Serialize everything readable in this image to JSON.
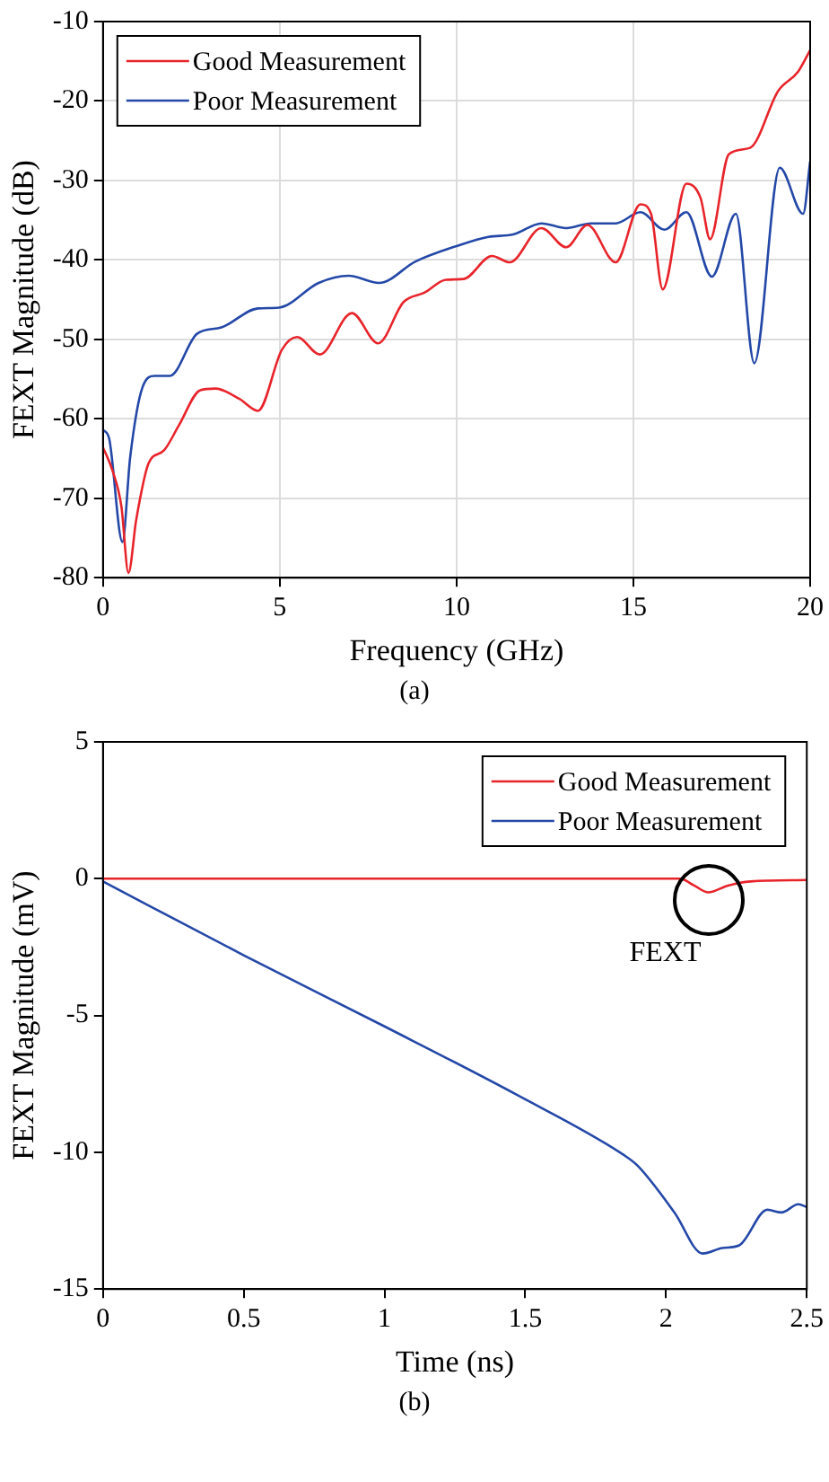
{
  "chart_data": [
    {
      "type": "line",
      "xlabel": "Frequency (GHz)",
      "ylabel": "FEXT Magnitude (dB)",
      "xlim": [
        0,
        20
      ],
      "xticks": [
        0,
        5,
        10,
        15,
        20
      ],
      "ylim": [
        -80,
        -10
      ],
      "yticks": [
        -80,
        -70,
        -60,
        -50,
        -40,
        -30,
        -20,
        -10
      ],
      "grid": true,
      "legend": "top left",
      "annotations": [
        "(a)"
      ],
      "series": [
        {
          "name": "Good Measurement",
          "color": "#e8242b",
          "x": [
            0,
            0.26,
            0.52,
            0.72,
            0.94,
            1.29,
            1.72,
            2.15,
            2.75,
            3.18,
            3.86,
            4.38,
            5.06,
            5.49,
            6.13,
            7.04,
            7.78,
            8.5,
            9.1,
            9.7,
            10.2,
            11.0,
            11.5,
            12.4,
            13.1,
            13.7,
            14.5,
            15.2,
            15.5,
            15.83,
            16.5,
            16.9,
            17.17,
            17.7,
            18.3,
            19.1,
            19.66,
            20
          ],
          "values": [
            -63.6,
            -66.4,
            -71,
            -79.4,
            -72.7,
            -65.6,
            -64,
            -60.8,
            -56.4,
            -56.2,
            -57.5,
            -59,
            -51.3,
            -49.7,
            -51.9,
            -46.7,
            -50.5,
            -45.3,
            -44.1,
            -42.5,
            -42.4,
            -39.5,
            -40.3,
            -36,
            -38.4,
            -35.6,
            -40.3,
            -33,
            -34.2,
            -43.7,
            -30.4,
            -32.2,
            -37.4,
            -26.7,
            -25.9,
            -18.7,
            -16.3,
            -13.6
          ]
        },
        {
          "name": "Poor Measurement",
          "color": "#2448a8",
          "x": [
            0,
            0.17,
            0.55,
            0.77,
            1.12,
            1.46,
            1.89,
            2.66,
            3.35,
            4.38,
            4.98,
            6.1,
            6.95,
            7.81,
            8.84,
            10.04,
            10.9,
            11.6,
            12.4,
            13.1,
            13.8,
            14.5,
            15.2,
            15.88,
            16.5,
            17.22,
            17.9,
            18.42,
            19.14,
            19.8,
            20
          ],
          "values": [
            -61.4,
            -62.4,
            -75.5,
            -64.8,
            -56,
            -54.6,
            -54.6,
            -49.3,
            -48.5,
            -46.1,
            -46,
            -42.9,
            -42,
            -42.9,
            -40.2,
            -38.2,
            -37.1,
            -36.8,
            -35.4,
            -36,
            -35.4,
            -35.4,
            -34,
            -36.2,
            -34,
            -42.1,
            -34.2,
            -53,
            -28.4,
            -34.2,
            -27.6
          ]
        }
      ]
    },
    {
      "type": "line",
      "xlabel": "Time (ns)",
      "ylabel": "FEXT Magnitude (mV)",
      "xlim": [
        0,
        2.5
      ],
      "xticks": [
        0,
        0.5,
        1,
        1.5,
        2,
        2.5
      ],
      "ylim": [
        -15,
        5
      ],
      "yticks": [
        -15,
        -10,
        -5,
        0,
        5
      ],
      "grid": false,
      "legend": "top right",
      "annotations": [
        {
          "text": "FEXT",
          "x": 2.15,
          "y": -0.5
        },
        "(b)"
      ],
      "series": [
        {
          "name": "Good Measurement",
          "color": "#e8242b",
          "x": [
            0,
            2.05,
            2.1,
            2.15,
            2.22,
            2.3,
            2.5
          ],
          "values": [
            0,
            0,
            -0.25,
            -0.5,
            -0.25,
            -0.1,
            -0.05
          ]
        },
        {
          "name": "Poor Measurement",
          "color": "#2448a8",
          "x": [
            0,
            0.5,
            1.0,
            1.47,
            1.85,
            1.9,
            2.03,
            2.13,
            2.2,
            2.26,
            2.36,
            2.41,
            2.47,
            2.5
          ],
          "values": [
            -0.1,
            -2.8,
            -5.4,
            -7.9,
            -10.1,
            -10.5,
            -12.2,
            -13.7,
            -13.5,
            -13.4,
            -12.1,
            -12.2,
            -11.9,
            -12.0
          ]
        }
      ]
    }
  ]
}
